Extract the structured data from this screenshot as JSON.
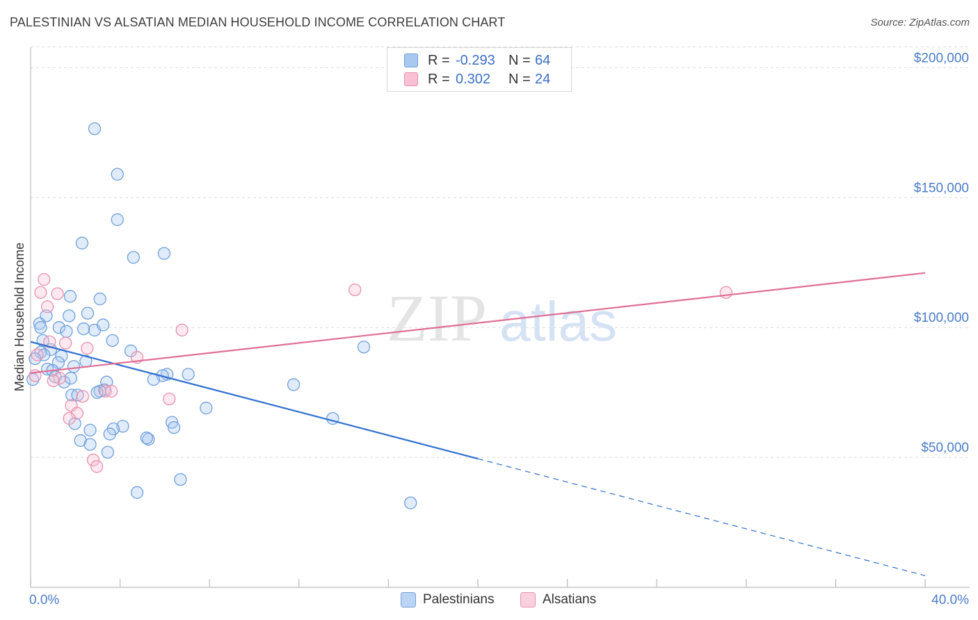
{
  "title": "PALESTINIAN VS ALSATIAN MEDIAN HOUSEHOLD INCOME CORRELATION CHART",
  "source": "Source: ZipAtlas.com",
  "watermark": {
    "zip": "ZIP",
    "atlas": "atlas"
  },
  "legend": {
    "rows": [
      {
        "r_label": "R =",
        "r_value": "-0.293",
        "n_label": "N =",
        "n_value": "64",
        "color": "#a9c8f0",
        "border": "#6f9fdc"
      },
      {
        "r_label": "R =",
        "r_value": "0.302",
        "n_label": "N =",
        "n_value": "24",
        "color": "#f8c0d2",
        "border": "#e890ae"
      }
    ]
  },
  "bottom_legend": {
    "palestinians": "Palestinians",
    "alsatians": "Alsatians"
  },
  "chart_data": {
    "type": "scatter",
    "title": "PALESTINIAN VS ALSATIAN MEDIAN HOUSEHOLD INCOME CORRELATION CHART",
    "xlabel": "",
    "ylabel": "Median Household Income",
    "xlim": [
      0,
      40
    ],
    "ylim": [
      0,
      210000
    ],
    "x_tick_labels": [
      "0.0%",
      "40.0%"
    ],
    "y_ticks": [
      50000,
      100000,
      150000,
      200000
    ],
    "y_tick_labels": [
      "$50,000",
      "$100,000",
      "$150,000",
      "$200,000"
    ],
    "colors": {
      "palestinians": "#6f9fdc",
      "palestinians_line": "#2f6fcf",
      "alsatians": "#e890ae",
      "alsatians_line": "#e06d95"
    },
    "series": [
      {
        "name": "Palestinians",
        "points": [
          [
            2.86,
            176500
          ],
          [
            3.88,
            159000
          ],
          [
            3.88,
            141500
          ],
          [
            2.3,
            132500
          ],
          [
            4.6,
            127000
          ],
          [
            5.97,
            128500
          ],
          [
            1.77,
            112000
          ],
          [
            3.1,
            111000
          ],
          [
            0.7,
            104500
          ],
          [
            1.72,
            104500
          ],
          [
            2.55,
            105500
          ],
          [
            0.4,
            101500
          ],
          [
            0.45,
            100000
          ],
          [
            1.27,
            100000
          ],
          [
            2.37,
            99500
          ],
          [
            2.86,
            99000
          ],
          [
            1.6,
            98500
          ],
          [
            3.24,
            101000
          ],
          [
            0.55,
            95000
          ],
          [
            3.66,
            95000
          ],
          [
            0.9,
            91500
          ],
          [
            4.48,
            91000
          ],
          [
            0.45,
            90500
          ],
          [
            0.6,
            89500
          ],
          [
            1.38,
            89000
          ],
          [
            2.47,
            87000
          ],
          [
            1.24,
            86500
          ],
          [
            1.93,
            85000
          ],
          [
            0.75,
            84000
          ],
          [
            0.98,
            83500
          ],
          [
            6.1,
            82000
          ],
          [
            7.05,
            82000
          ],
          [
            5.9,
            81500
          ],
          [
            1.1,
            81000
          ],
          [
            1.5,
            79000
          ],
          [
            5.5,
            80000
          ],
          [
            3.4,
            79000
          ],
          [
            11.76,
            78000
          ],
          [
            3.3,
            76000
          ],
          [
            3.1,
            75500
          ],
          [
            2.97,
            75000
          ],
          [
            1.84,
            74000
          ],
          [
            2.1,
            74000
          ],
          [
            7.85,
            69000
          ],
          [
            13.51,
            65000
          ],
          [
            4.12,
            62000
          ],
          [
            6.32,
            63500
          ],
          [
            1.98,
            63000
          ],
          [
            3.7,
            61000
          ],
          [
            6.41,
            61500
          ],
          [
            2.66,
            60500
          ],
          [
            3.54,
            59000
          ],
          [
            5.27,
            57000
          ],
          [
            5.19,
            57500
          ],
          [
            2.23,
            56500
          ],
          [
            2.66,
            55000
          ],
          [
            3.45,
            52000
          ],
          [
            6.7,
            41500
          ],
          [
            4.76,
            36500
          ],
          [
            16.99,
            32500
          ],
          [
            14.9,
            92500
          ],
          [
            0.1,
            80000
          ],
          [
            0.2,
            88000
          ],
          [
            1.8,
            80500
          ]
        ]
      },
      {
        "name": "Alsatians",
        "points": [
          [
            0.6,
            118500
          ],
          [
            0.45,
            113500
          ],
          [
            1.2,
            113000
          ],
          [
            0.75,
            108000
          ],
          [
            14.5,
            114500
          ],
          [
            31.1,
            113500
          ],
          [
            6.77,
            99000
          ],
          [
            0.85,
            94500
          ],
          [
            1.56,
            94000
          ],
          [
            2.53,
            92000
          ],
          [
            4.76,
            88500
          ],
          [
            0.3,
            89500
          ],
          [
            0.2,
            81500
          ],
          [
            1.3,
            80500
          ],
          [
            1.02,
            79500
          ],
          [
            2.33,
            73500
          ],
          [
            3.35,
            75500
          ],
          [
            3.61,
            75500
          ],
          [
            6.2,
            72500
          ],
          [
            1.82,
            70000
          ],
          [
            2.08,
            67000
          ],
          [
            1.73,
            65000
          ],
          [
            2.8,
            49000
          ],
          [
            2.96,
            46500
          ]
        ]
      }
    ],
    "trend_lines": [
      {
        "name": "Palestinians",
        "x0": 0,
        "y0": 94500,
        "x1": 20,
        "y1": 49500,
        "dashed_to_x": 40,
        "dashed_to_y": 4500
      },
      {
        "name": "Alsatians",
        "x0": 0,
        "y0": 82500,
        "x1": 40,
        "y1": 121000
      }
    ]
  }
}
